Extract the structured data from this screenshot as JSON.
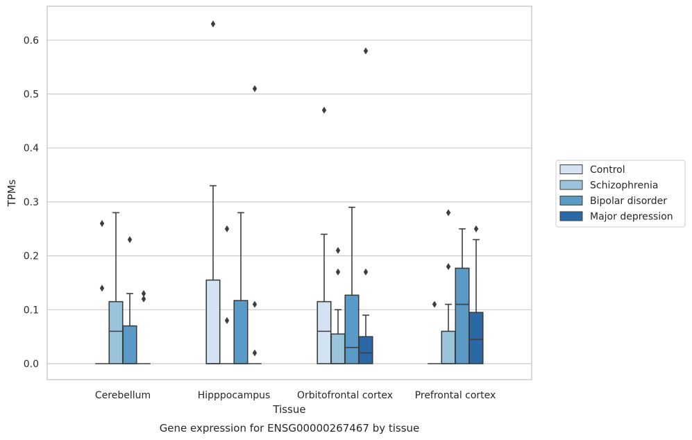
{
  "chart_data": {
    "type": "boxplot",
    "title": "",
    "caption": "Gene expression for ENSG00000267467 by tissue",
    "xlabel": "Tissue",
    "ylabel": "TPMs",
    "ylim": [
      -0.03,
      0.66
    ],
    "yticks": [
      0.0,
      0.1,
      0.2,
      0.3,
      0.4,
      0.5,
      0.6
    ],
    "ytick_labels": [
      "0.0",
      "0.1",
      "0.2",
      "0.3",
      "0.4",
      "0.5",
      "0.6"
    ],
    "grid": "horizontal",
    "legend_position": "right",
    "categories": [
      "Cerebellum",
      "Hipppocampus",
      "Orbitofrontal cortex",
      "Prefrontal cortex"
    ],
    "series": [
      {
        "name": "Control",
        "color": "#d4e3f3",
        "boxes": [
          {
            "q1": 0,
            "median": 0,
            "q3": 0,
            "whisker_low": 0,
            "whisker_high": 0,
            "outliers": [
              0.26,
              0.14
            ]
          },
          {
            "q1": 0,
            "median": 0,
            "q3": 0.155,
            "whisker_low": 0,
            "whisker_high": 0.33,
            "outliers": [
              0.63
            ]
          },
          {
            "q1": 0,
            "median": 0.06,
            "q3": 0.115,
            "whisker_low": 0,
            "whisker_high": 0.24,
            "outliers": [
              0.47
            ]
          },
          {
            "q1": 0,
            "median": 0,
            "q3": 0,
            "whisker_low": 0,
            "whisker_high": 0,
            "outliers": [
              0.11
            ]
          }
        ]
      },
      {
        "name": "Schizophrenia",
        "color": "#9ac3dc",
        "boxes": [
          {
            "q1": 0,
            "median": 0.06,
            "q3": 0.115,
            "whisker_low": 0,
            "whisker_high": 0.28,
            "outliers": []
          },
          {
            "q1": 0,
            "median": 0,
            "q3": 0,
            "whisker_low": 0,
            "whisker_high": 0,
            "outliers": [
              0.25,
              0.08
            ]
          },
          {
            "q1": 0,
            "median": 0,
            "q3": 0.055,
            "whisker_low": 0,
            "whisker_high": 0.1,
            "outliers": [
              0.21,
              0.17
            ]
          },
          {
            "q1": 0,
            "median": 0,
            "q3": 0.06,
            "whisker_low": 0,
            "whisker_high": 0.11,
            "outliers": [
              0.28,
              0.18
            ]
          }
        ]
      },
      {
        "name": "Bipolar disorder",
        "color": "#5a9ac7",
        "boxes": [
          {
            "q1": 0,
            "median": 0,
            "q3": 0.07,
            "whisker_low": 0,
            "whisker_high": 0.13,
            "outliers": [
              0.23
            ]
          },
          {
            "q1": 0,
            "median": 0,
            "q3": 0.117,
            "whisker_low": 0,
            "whisker_high": 0.28,
            "outliers": []
          },
          {
            "q1": 0,
            "median": 0.03,
            "q3": 0.127,
            "whisker_low": 0,
            "whisker_high": 0.29,
            "outliers": []
          },
          {
            "q1": 0,
            "median": 0.11,
            "q3": 0.177,
            "whisker_low": 0,
            "whisker_high": 0.25,
            "outliers": []
          }
        ]
      },
      {
        "name": "Major depression",
        "color": "#2b68a6",
        "boxes": [
          {
            "q1": 0,
            "median": 0,
            "q3": 0,
            "whisker_low": 0,
            "whisker_high": 0,
            "outliers": [
              0.13,
              0.12
            ]
          },
          {
            "q1": 0,
            "median": 0,
            "q3": 0,
            "whisker_low": 0,
            "whisker_high": 0,
            "outliers": [
              0.51,
              0.11,
              0.02
            ]
          },
          {
            "q1": 0,
            "median": 0.02,
            "q3": 0.05,
            "whisker_low": 0,
            "whisker_high": 0.09,
            "outliers": [
              0.58,
              0.17
            ]
          },
          {
            "q1": 0,
            "median": 0.045,
            "q3": 0.095,
            "whisker_low": 0,
            "whisker_high": 0.23,
            "outliers": [
              0.25
            ]
          }
        ]
      }
    ]
  }
}
